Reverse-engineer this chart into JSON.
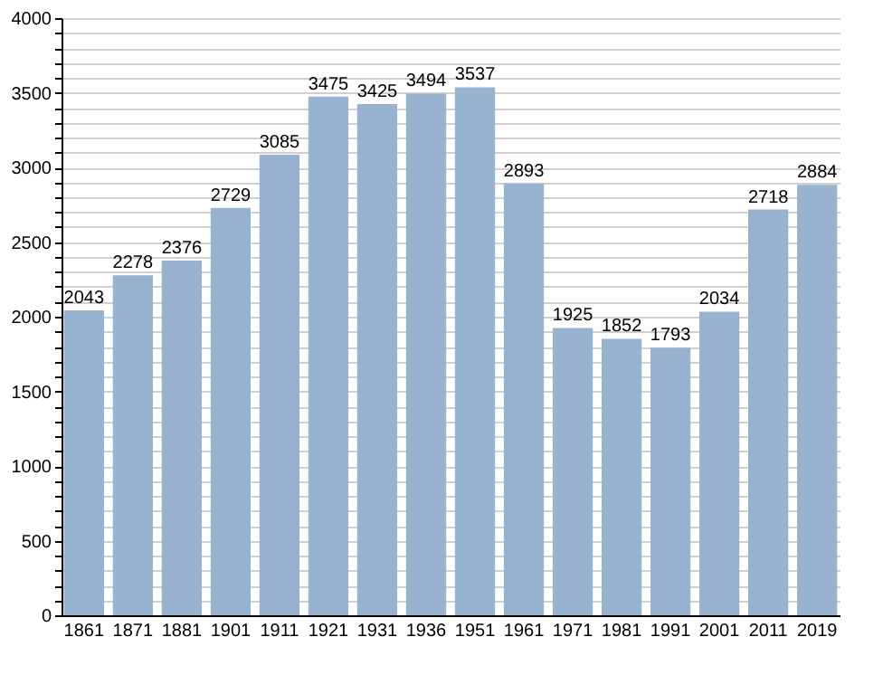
{
  "chart_data": {
    "type": "bar",
    "categories": [
      "1861",
      "1871",
      "1881",
      "1901",
      "1911",
      "1921",
      "1931",
      "1936",
      "1951",
      "1961",
      "1971",
      "1981",
      "1991",
      "2001",
      "2011",
      "2019"
    ],
    "values": [
      2043,
      2278,
      2376,
      2729,
      3085,
      3475,
      3425,
      3494,
      3537,
      2893,
      1925,
      1852,
      1793,
      2034,
      2718,
      2884
    ],
    "color": "#97b3cf",
    "data_labels": true,
    "ylim": [
      0,
      4000
    ],
    "yticks": [
      0,
      {
        "value": 100,
        "label": null
      },
      {
        "value": 200,
        "label": null
      },
      {
        "value": 300,
        "label": null
      },
      {
        "value": 400,
        "label": null
      },
      500,
      {
        "value": 600,
        "label": null
      },
      {
        "value": 700,
        "label": null
      },
      {
        "value": 800,
        "label": null
      },
      {
        "value": 900,
        "label": null
      },
      1000,
      {
        "value": 1100,
        "label": null
      },
      {
        "value": 1200,
        "label": null
      },
      {
        "value": 1300,
        "label": null
      },
      {
        "value": 1400,
        "label": null
      },
      1500,
      {
        "value": 1600,
        "label": null
      },
      {
        "value": 1700,
        "label": null
      },
      {
        "value": 1800,
        "label": null
      },
      {
        "value": 1900,
        "label": null
      },
      2000,
      {
        "value": 2100,
        "label": null
      },
      {
        "value": 2200,
        "label": null
      },
      {
        "value": 2300,
        "label": null
      },
      {
        "value": 2400,
        "label": null
      },
      2500,
      {
        "value": 2600,
        "label": null
      },
      {
        "value": 2700,
        "label": null
      },
      {
        "value": 2800,
        "label": null
      },
      {
        "value": 2900,
        "label": null
      },
      3000,
      {
        "value": 3100,
        "label": null
      },
      {
        "value": 3200,
        "label": null
      },
      {
        "value": 3300,
        "label": null
      },
      {
        "value": 3400,
        "label": null
      },
      3500,
      {
        "value": 3600,
        "label": null
      },
      {
        "value": 3700,
        "label": null
      },
      {
        "value": 3800,
        "label": null
      },
      {
        "value": 3900,
        "label": null
      },
      4000
    ],
    "grid": "y"
  }
}
